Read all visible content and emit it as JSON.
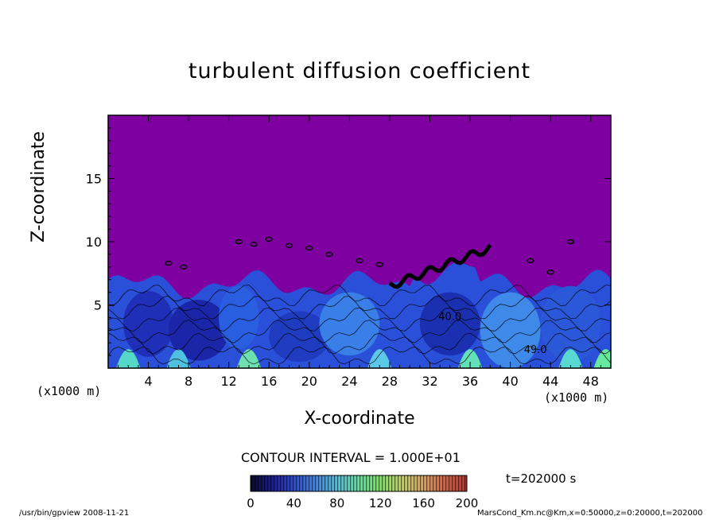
{
  "chart_data": {
    "type": "heatmap",
    "title": "turbulent diffusion coefficient",
    "xlabel": "X-coordinate",
    "ylabel": "Z-coordinate",
    "x_unit_label": "(x1000 m)",
    "xlim": [
      0,
      50
    ],
    "ylim": [
      0,
      20
    ],
    "x_ticks": [
      4,
      8,
      12,
      16,
      20,
      24,
      28,
      32,
      36,
      40,
      44,
      48
    ],
    "y_ticks": [
      5,
      10,
      15
    ],
    "contour_interval_text": "CONTOUR INTERVAL = 1.000E+01",
    "contour_labels": [
      {
        "text": "40.0",
        "x": 34,
        "z": 3.8
      },
      {
        "text": "49.0",
        "x": 42.5,
        "z": 1.2
      }
    ],
    "colorbar": {
      "range": [
        0,
        200
      ],
      "ticks": [
        0,
        40,
        80,
        120,
        160,
        200
      ],
      "colors": [
        "#0a0a2e",
        "#1a1a9a",
        "#2b4bd8",
        "#3f86e8",
        "#4fc0d8",
        "#5ee0a0",
        "#7ae060",
        "#c0d060",
        "#d8a060",
        "#d86040",
        "#c03030"
      ]
    },
    "background_color": "#7f00a0",
    "time_label": "t=202000 s"
  },
  "footer": {
    "left": "/usr/bin/gpview   2008-11-21",
    "right": "MarsCond_Km.nc@Km,x=0:50000,z=0:20000,t=202000"
  }
}
